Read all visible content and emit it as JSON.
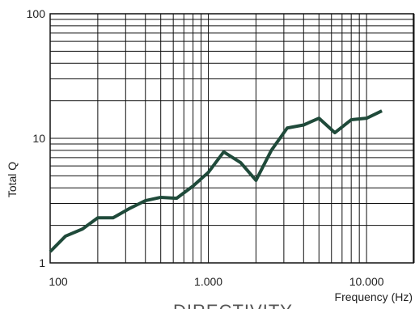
{
  "chart_data": {
    "type": "line",
    "title": "DIRECTIVITY",
    "x_label": "Frequency (Hz)",
    "y_label": "Total Q",
    "x_log": true,
    "y_log": true,
    "grid": true,
    "xlim": [
      100,
      20000
    ],
    "ylim": [
      1,
      100
    ],
    "xticks": [
      100,
      {
        "value": 1000,
        "label": "1.000"
      },
      {
        "value": 10000,
        "label": "10.000"
      }
    ],
    "yticks": [
      1,
      10,
      100
    ],
    "series": [
      {
        "name": "Total Q",
        "color": "#1f4a3a",
        "x": [
          100,
          125,
          160,
          200,
          250,
          315,
          400,
          500,
          630,
          800,
          1000,
          1250,
          1600,
          2000,
          2500,
          3150,
          4000,
          5000,
          6300,
          8000,
          10000,
          12500
        ],
        "values": [
          1.23,
          1.64,
          1.87,
          2.3,
          2.3,
          2.72,
          3.16,
          3.36,
          3.3,
          4.14,
          5.33,
          7.78,
          6.38,
          4.6,
          8.0,
          12.1,
          12.8,
          14.5,
          11.1,
          14.1,
          14.5,
          16.6
        ]
      }
    ]
  }
}
